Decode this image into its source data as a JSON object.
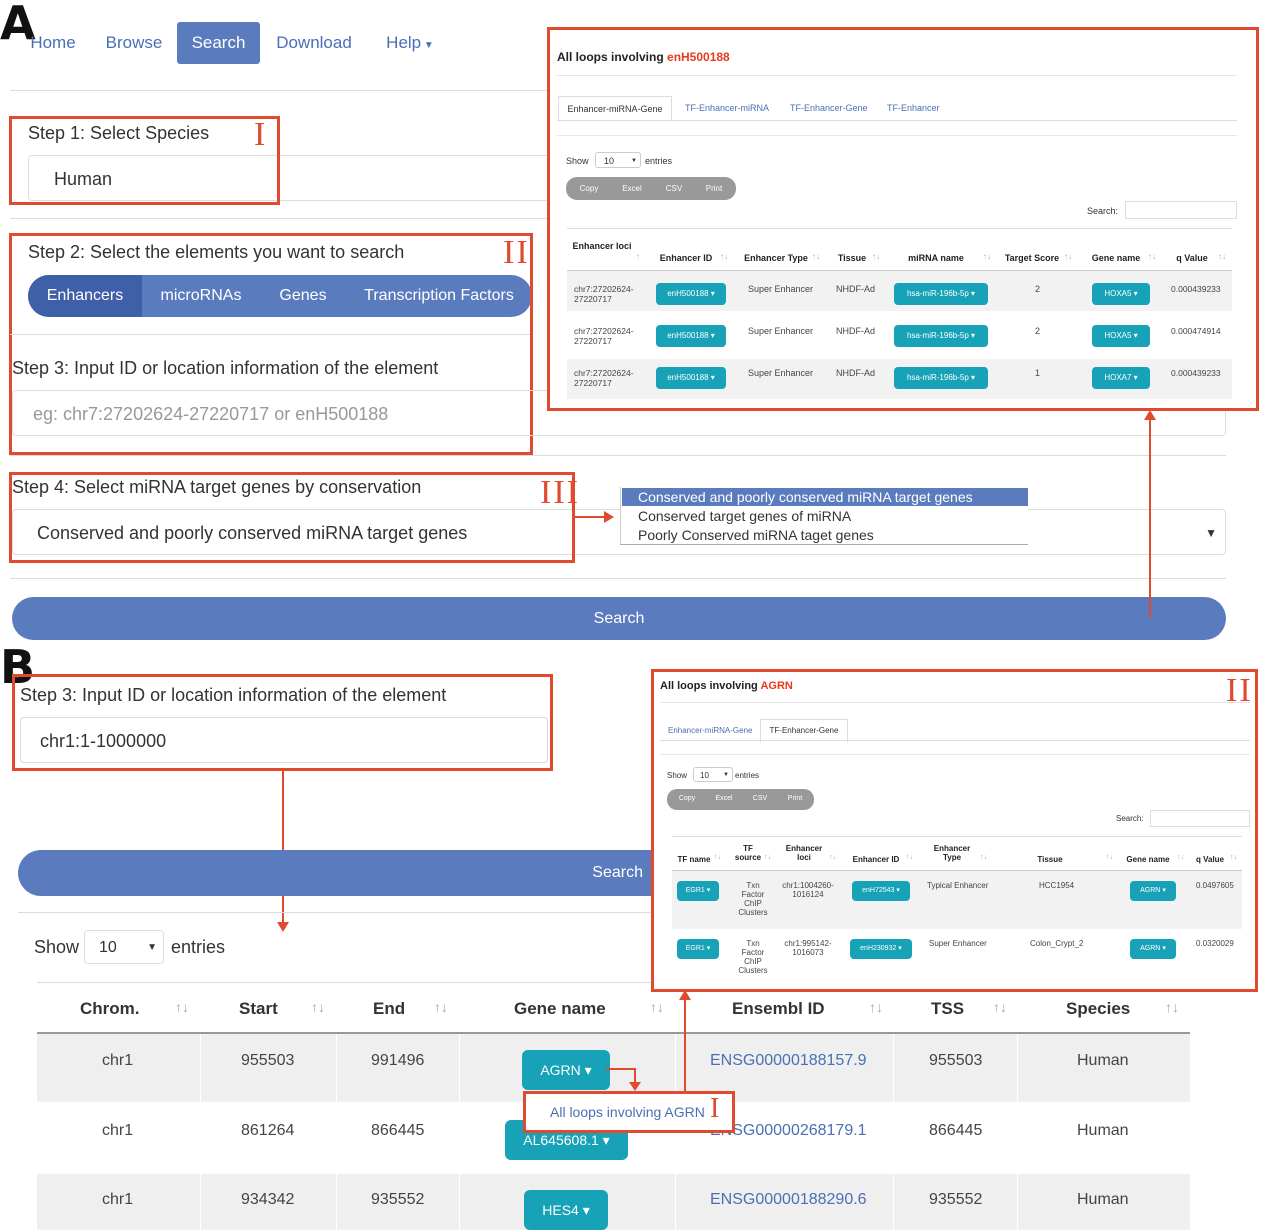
{
  "panel_a": {
    "letter": "A",
    "nav": {
      "home": "Home",
      "browse": "Browse",
      "search": "Search",
      "download": "Download",
      "help": "Help"
    },
    "step1": {
      "label": "Step 1: Select Species",
      "value": "Human",
      "marker": "I"
    },
    "step2": {
      "label": "Step 2: Select the elements you want to search",
      "marker": "II",
      "segments": [
        "Enhancers",
        "microRNAs",
        "Genes",
        "Transcription Factors"
      ]
    },
    "step3": {
      "label": "Step 3: Input ID or location information of the element",
      "placeholder": "eg: chr7:27202624-27220717 or enH500188"
    },
    "step4": {
      "label": "Step 4: Select miRNA target genes by conservation",
      "marker": "III",
      "value": "Conserved and poorly conserved miRNA target genes",
      "options": [
        "Conserved and poorly conserved miRNA target genes",
        "Conserved target genes of miRNA",
        "Poorly Conserved miRNA taget genes"
      ]
    },
    "search_button": "Search",
    "result": {
      "title_prefix": "All loops involving ",
      "title_id": "enH500188",
      "tabs": [
        "Enhancer-miRNA-Gene",
        "TF-Enhancer-miRNA",
        "TF-Enhancer-Gene",
        "TF-Enhancer"
      ],
      "show_label": "Show",
      "show_value": "10",
      "entries_label": "entries",
      "buttons": [
        "Copy",
        "Excel",
        "CSV",
        "Print"
      ],
      "search_label": "Search:",
      "headers": [
        "Enhancer loci",
        "Enhancer ID",
        "Enhancer Type",
        "Tissue",
        "miRNA name",
        "Target Score",
        "Gene name",
        "q Value"
      ],
      "rows": [
        {
          "loci": "chr7:27202624-27220717",
          "enhancer_id": "enH500188",
          "type": "Super Enhancer",
          "tissue": "NHDF-Ad",
          "mirna": "hsa-miR-196b-5p",
          "score": "2",
          "gene": "HOXA5",
          "q": "0.000439233"
        },
        {
          "loci": "chr7:27202624-27220717",
          "enhancer_id": "enH500188",
          "type": "Super Enhancer",
          "tissue": "NHDF-Ad",
          "mirna": "hsa-miR-196b-5p",
          "score": "2",
          "gene": "HOXA5",
          "q": "0.000474914"
        },
        {
          "loci": "chr7:27202624-27220717",
          "enhancer_id": "enH500188",
          "type": "Super Enhancer",
          "tissue": "NHDF-Ad",
          "mirna": "hsa-miR-196b-5p",
          "score": "1",
          "gene": "HOXA7",
          "q": "0.000439233"
        }
      ]
    }
  },
  "panel_b": {
    "letter": "B",
    "step3": {
      "label": "Step 3: Input ID or location information of the element",
      "value": "chr1:1-1000000"
    },
    "search_button": "Search",
    "show_label": "Show",
    "show_value": "10",
    "entries_label": "entries",
    "headers": [
      "Chrom.",
      "Start",
      "End",
      "Gene name",
      "Ensembl ID",
      "TSS",
      "Species"
    ],
    "rows": [
      {
        "chrom": "chr1",
        "start": "955503",
        "end": "991496",
        "gene": "AGRN",
        "ensembl": "ENSG00000188157.9",
        "tss": "955503",
        "species": "Human"
      },
      {
        "chrom": "chr1",
        "start": "861264",
        "end": "866445",
        "gene": "AL645608.1",
        "ensembl": "ENSG00000268179.1",
        "tss": "866445",
        "species": "Human"
      },
      {
        "chrom": "chr1",
        "start": "934342",
        "end": "935552",
        "gene": "HES4",
        "ensembl": "ENSG00000188290.6",
        "tss": "935552",
        "species": "Human"
      }
    ],
    "dropdown_item": "All loops involving AGRN",
    "dropdown_marker": "I",
    "result": {
      "title_prefix": "All loops involving ",
      "title_id": "AGRN",
      "marker": "II",
      "tabs": [
        "Enhancer-miRNA-Gene",
        "TF-Enhancer-Gene"
      ],
      "show_label": "Show",
      "show_value": "10",
      "entries_label": "entries",
      "buttons": [
        "Copy",
        "Excel",
        "CSV",
        "Print"
      ],
      "search_label": "Search:",
      "headers": [
        "TF name",
        "TF source",
        "Enhancer loci",
        "Enhancer ID",
        "Enhancer Type",
        "Tissue",
        "Gene name",
        "q Value"
      ],
      "rows": [
        {
          "tf": "EGR1",
          "source": "Txn Factor ChIP Clusters",
          "loci": "chr1:1004260-1016124",
          "enhancer_id": "enH72543",
          "type": "Typical Enhancer",
          "tissue": "HCC1954",
          "gene": "AGRN",
          "q": "0.0497605"
        },
        {
          "tf": "EGR1",
          "source": "Txn Factor ChIP Clusters",
          "loci": "chr1:995142-1016073",
          "enhancer_id": "enH230932",
          "type": "Super Enhancer",
          "tissue": "Colon_Crypt_2",
          "gene": "AGRN",
          "q": "0.0320029"
        }
      ]
    }
  },
  "colors": {
    "accent": "#5b7bbf",
    "teal": "#17a2b8",
    "annotation": "#e04a2f",
    "highlight_red": "#e8381f"
  }
}
